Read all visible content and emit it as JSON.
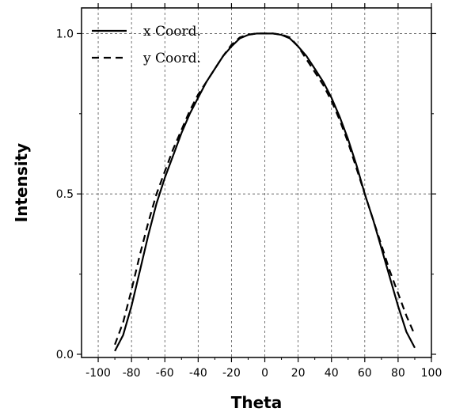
{
  "chart_data": {
    "type": "line",
    "title": "",
    "xlabel": "Theta",
    "ylabel": "Intensity",
    "xlim": [
      -110,
      100
    ],
    "ylim": [
      -0.01,
      1.08
    ],
    "xticks": [
      -100,
      -80,
      -60,
      -40,
      -20,
      0,
      20,
      40,
      60,
      80,
      100
    ],
    "xtick_labels": [
      "-100",
      "-80",
      "-60",
      "-40",
      "-20",
      "0",
      "20",
      "40",
      "60",
      "80",
      "100"
    ],
    "yticks": [
      0.0,
      0.5,
      1.0
    ],
    "ytick_labels": [
      "0.0",
      "0.5",
      "1.0"
    ],
    "grid": true,
    "legend_position": "top-left",
    "x": [
      -90,
      -85,
      -80,
      -75,
      -70,
      -65,
      -60,
      -55,
      -50,
      -45,
      -40,
      -35,
      -30,
      -25,
      -20,
      -15,
      -10,
      -5,
      0,
      5,
      10,
      15,
      20,
      25,
      30,
      35,
      40,
      45,
      50,
      55,
      60,
      65,
      70,
      75,
      80,
      85,
      90
    ],
    "series": [
      {
        "name": "x Coord.",
        "style": "solid",
        "values": [
          0.01,
          0.06,
          0.15,
          0.26,
          0.37,
          0.47,
          0.55,
          0.62,
          0.69,
          0.75,
          0.8,
          0.85,
          0.89,
          0.93,
          0.96,
          0.985,
          0.996,
          1.0,
          1.0,
          1.0,
          0.996,
          0.985,
          0.96,
          0.93,
          0.89,
          0.85,
          0.8,
          0.74,
          0.67,
          0.59,
          0.5,
          0.42,
          0.33,
          0.24,
          0.15,
          0.07,
          0.02
        ]
      },
      {
        "name": "y Coord.",
        "style": "dashed",
        "values": [
          0.03,
          0.1,
          0.2,
          0.31,
          0.41,
          0.5,
          0.57,
          0.64,
          0.7,
          0.76,
          0.81,
          0.85,
          0.89,
          0.93,
          0.965,
          0.988,
          0.997,
          1.0,
          1.0,
          1.0,
          0.997,
          0.988,
          0.96,
          0.92,
          0.88,
          0.84,
          0.79,
          0.73,
          0.66,
          0.58,
          0.5,
          0.42,
          0.34,
          0.26,
          0.19,
          0.12,
          0.06
        ]
      }
    ]
  }
}
